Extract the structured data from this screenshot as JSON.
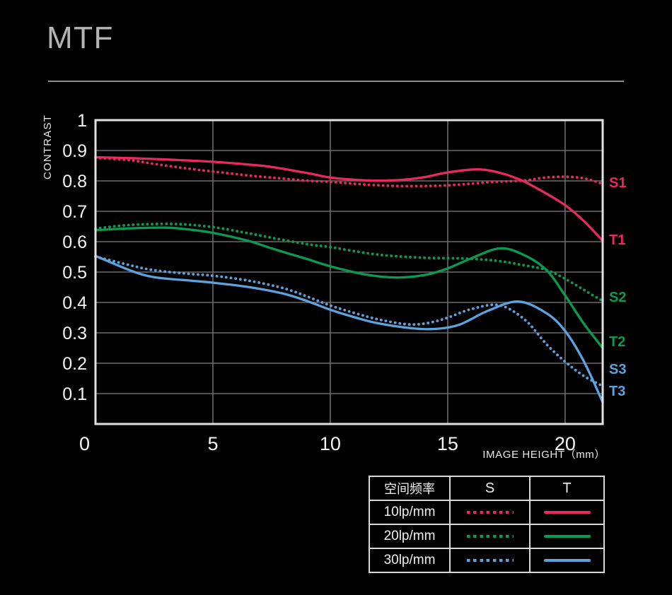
{
  "title": "MTF",
  "colors": {
    "pink_10lp": "#e9295f",
    "green_20lp": "#0a9b52",
    "blue_30lp": "#5ca3df",
    "grid": "#6b6b6b",
    "plot_border": "#e2e2e2",
    "tick_text": "#f3f3f3",
    "axis_text": "#e9e9e9",
    "title_text": "#b6b3b6"
  },
  "chart_data": {
    "type": "line",
    "title": "MTF",
    "ylabel": "CONTRAST",
    "xlabel": "IMAGE HEIGHT（mm）",
    "xlim": [
      0,
      21.6
    ],
    "ylim": [
      0,
      1
    ],
    "grid": true,
    "x_gridlines": [
      5,
      10,
      15,
      20
    ],
    "y_gridlines": [
      0.1,
      0.2,
      0.3,
      0.4,
      0.5,
      0.6,
      0.7,
      0.8,
      0.9
    ],
    "x_ticks": [
      {
        "label": "0",
        "mm": 0
      },
      {
        "label": "5",
        "mm": 5
      },
      {
        "label": "10",
        "mm": 10
      },
      {
        "label": "15",
        "mm": 15
      },
      {
        "label": "20",
        "mm": 20
      }
    ],
    "y_ticks": [
      {
        "label": "1",
        "v": 1
      },
      {
        "label": "0.9",
        "v": 0.9
      },
      {
        "label": "0.8",
        "v": 0.8
      },
      {
        "label": "0.7",
        "v": 0.7
      },
      {
        "label": "0.6",
        "v": 0.6
      },
      {
        "label": "0.5",
        "v": 0.5
      },
      {
        "label": "0.4",
        "v": 0.4
      },
      {
        "label": "0.3",
        "v": 0.3
      },
      {
        "label": "0.2",
        "v": 0.2
      },
      {
        "label": "0.1",
        "v": 0.1
      }
    ],
    "series": [
      {
        "name": "T1",
        "frequency": "10lp/mm",
        "orientation": "T",
        "style": "solid",
        "color": "#e9295f",
        "label_v": 0.607,
        "points": [
          [
            0,
            0.878
          ],
          [
            1.5,
            0.875
          ],
          [
            2.5,
            0.872
          ],
          [
            4,
            0.867
          ],
          [
            5,
            0.863
          ],
          [
            6.5,
            0.854
          ],
          [
            7.5,
            0.846
          ],
          [
            9,
            0.826
          ],
          [
            10,
            0.811
          ],
          [
            11,
            0.804
          ],
          [
            12,
            0.801
          ],
          [
            13,
            0.803
          ],
          [
            14,
            0.812
          ],
          [
            15,
            0.828
          ],
          [
            16.3,
            0.838
          ],
          [
            17.3,
            0.825
          ],
          [
            18.2,
            0.8
          ],
          [
            19,
            0.767
          ],
          [
            20,
            0.72
          ],
          [
            20.8,
            0.668
          ],
          [
            21.6,
            0.603
          ]
        ]
      },
      {
        "name": "S1",
        "frequency": "10lp/mm",
        "orientation": "S",
        "style": "dotted",
        "color": "#e9295f",
        "label_v": 0.795,
        "points": [
          [
            0,
            0.876
          ],
          [
            1.5,
            0.868
          ],
          [
            2.5,
            0.856
          ],
          [
            4,
            0.84
          ],
          [
            5,
            0.831
          ],
          [
            6.5,
            0.818
          ],
          [
            7.5,
            0.811
          ],
          [
            9,
            0.801
          ],
          [
            10,
            0.797
          ],
          [
            11.5,
            0.788
          ],
          [
            13,
            0.783
          ],
          [
            14.5,
            0.784
          ],
          [
            15.5,
            0.788
          ],
          [
            17,
            0.797
          ],
          [
            18.2,
            0.801
          ],
          [
            19.3,
            0.812
          ],
          [
            20.3,
            0.813
          ],
          [
            21,
            0.805
          ],
          [
            21.6,
            0.79
          ]
        ]
      },
      {
        "name": "T2",
        "frequency": "20lp/mm",
        "orientation": "T",
        "style": "solid",
        "color": "#0a9b52",
        "label_v": 0.272,
        "points": [
          [
            0,
            0.638
          ],
          [
            1.5,
            0.644
          ],
          [
            3,
            0.646
          ],
          [
            4,
            0.64
          ],
          [
            5,
            0.629
          ],
          [
            6.5,
            0.603
          ],
          [
            7.5,
            0.578
          ],
          [
            9,
            0.543
          ],
          [
            10,
            0.519
          ],
          [
            11.5,
            0.492
          ],
          [
            12.8,
            0.482
          ],
          [
            14,
            0.49
          ],
          [
            15,
            0.512
          ],
          [
            16,
            0.545
          ],
          [
            17.2,
            0.578
          ],
          [
            18.2,
            0.558
          ],
          [
            19.2,
            0.507
          ],
          [
            20,
            0.423
          ],
          [
            20.8,
            0.33
          ],
          [
            21.6,
            0.25
          ]
        ]
      },
      {
        "name": "S2",
        "frequency": "20lp/mm",
        "orientation": "S",
        "style": "dotted",
        "color": "#0a9b52",
        "label_v": 0.419,
        "points": [
          [
            0,
            0.643
          ],
          [
            1,
            0.652
          ],
          [
            2,
            0.657
          ],
          [
            3.5,
            0.658
          ],
          [
            5,
            0.648
          ],
          [
            6.5,
            0.628
          ],
          [
            7.5,
            0.613
          ],
          [
            9,
            0.592
          ],
          [
            10,
            0.582
          ],
          [
            11.5,
            0.563
          ],
          [
            12.5,
            0.554
          ],
          [
            14,
            0.547
          ],
          [
            15.5,
            0.545
          ],
          [
            17,
            0.538
          ],
          [
            18.2,
            0.523
          ],
          [
            19.2,
            0.507
          ],
          [
            20,
            0.478
          ],
          [
            21,
            0.432
          ],
          [
            21.6,
            0.405
          ]
        ]
      },
      {
        "name": "T3",
        "frequency": "30lp/mm",
        "orientation": "T",
        "style": "solid",
        "color": "#5ca3df",
        "label_v": 0.109,
        "points": [
          [
            0,
            0.553
          ],
          [
            1.5,
            0.505
          ],
          [
            2.5,
            0.483
          ],
          [
            4,
            0.472
          ],
          [
            5,
            0.465
          ],
          [
            6.5,
            0.451
          ],
          [
            8,
            0.429
          ],
          [
            9,
            0.405
          ],
          [
            10,
            0.376
          ],
          [
            11,
            0.352
          ],
          [
            12,
            0.332
          ],
          [
            13.5,
            0.315
          ],
          [
            14.5,
            0.313
          ],
          [
            15.5,
            0.327
          ],
          [
            16.7,
            0.372
          ],
          [
            18,
            0.403
          ],
          [
            19.2,
            0.365
          ],
          [
            20,
            0.306
          ],
          [
            20.8,
            0.206
          ],
          [
            21.6,
            0.072
          ]
        ]
      },
      {
        "name": "S3",
        "frequency": "30lp/mm",
        "orientation": "S",
        "style": "dotted",
        "color": "#5ca3df",
        "label_v": 0.181,
        "points": [
          [
            0,
            0.551
          ],
          [
            1.5,
            0.522
          ],
          [
            2.5,
            0.506
          ],
          [
            4,
            0.494
          ],
          [
            5,
            0.488
          ],
          [
            6.5,
            0.472
          ],
          [
            8,
            0.447
          ],
          [
            9,
            0.42
          ],
          [
            10,
            0.39
          ],
          [
            11,
            0.366
          ],
          [
            12,
            0.345
          ],
          [
            13.3,
            0.328
          ],
          [
            14.2,
            0.333
          ],
          [
            15,
            0.35
          ],
          [
            16,
            0.378
          ],
          [
            17.2,
            0.391
          ],
          [
            18.3,
            0.342
          ],
          [
            19.2,
            0.263
          ],
          [
            20,
            0.205
          ],
          [
            20.8,
            0.158
          ],
          [
            21.6,
            0.125
          ]
        ]
      }
    ]
  },
  "legend": {
    "header": {
      "frequency": "空间频率",
      "s": "S",
      "t": "T"
    },
    "rows": [
      {
        "frequency": "10lp/mm",
        "color": "#e9295f"
      },
      {
        "frequency": "20lp/mm",
        "color": "#0a9b52"
      },
      {
        "frequency": "30lp/mm",
        "color": "#5ca3df"
      }
    ]
  }
}
